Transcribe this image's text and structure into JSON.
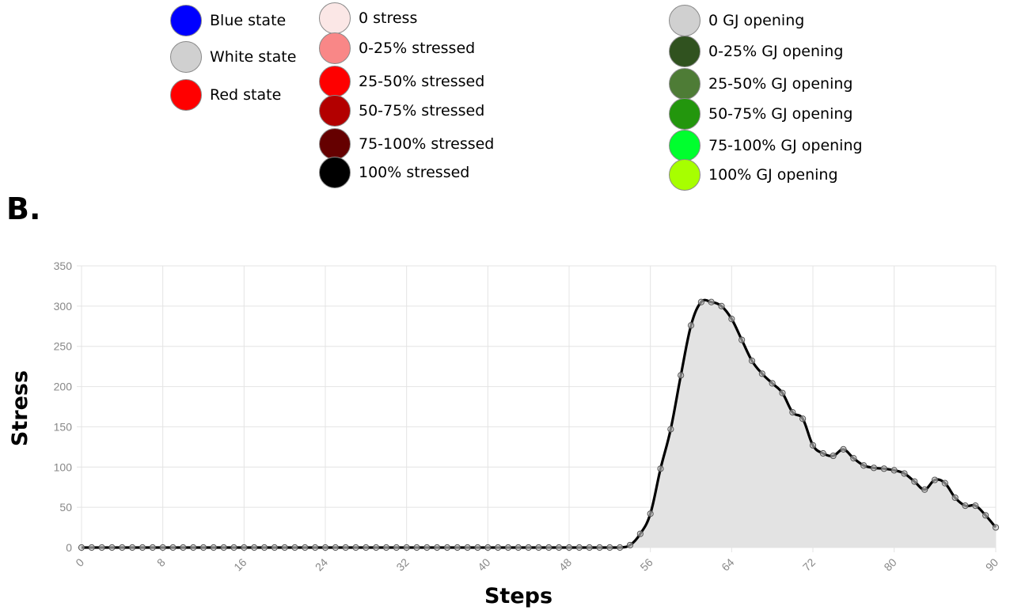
{
  "legend": {
    "states": [
      {
        "label": "Blue state",
        "color": "#0000ff"
      },
      {
        "label": "White state",
        "color": "#d0d0d0"
      },
      {
        "label": "Red state",
        "color": "#ff0000"
      }
    ],
    "stress": [
      {
        "label": "0 stress",
        "color": "#fbe7e6"
      },
      {
        "label": "0-25% stressed",
        "color": "#f98787"
      },
      {
        "label": "25-50% stressed",
        "color": "#fe0000"
      },
      {
        "label": "50-75% stressed",
        "color": "#b30000"
      },
      {
        "label": "75-100% stressed",
        "color": "#650000"
      },
      {
        "label": "100% stressed",
        "color": "#000000"
      }
    ],
    "gj": [
      {
        "label": "0  GJ opening",
        "color": "#d0d0d0"
      },
      {
        "label": "0-25% GJ opening",
        "color": "#30521f"
      },
      {
        "label": "25-50% GJ opening",
        "color": "#4e7c36"
      },
      {
        "label": "50-75% GJ opening",
        "color": "#23960d"
      },
      {
        "label": "75-100% GJ opening",
        "color": "#00ff2e"
      },
      {
        "label": "100% GJ opening",
        "color": "#a7ff00"
      }
    ]
  },
  "panel_label": "B.",
  "chart_data": {
    "type": "area",
    "xlabel": "Steps",
    "ylabel": "Stress",
    "xlim": [
      0,
      90
    ],
    "ylim": [
      0,
      350
    ],
    "x_ticks": [
      0,
      8,
      16,
      24,
      32,
      40,
      48,
      56,
      64,
      72,
      80,
      90
    ],
    "y_ticks": [
      0,
      50,
      100,
      150,
      200,
      250,
      300,
      350
    ],
    "grid": true,
    "line_color": "#000000",
    "fill_color": "#e3e3e3",
    "x": [
      0,
      1,
      2,
      3,
      4,
      5,
      6,
      7,
      8,
      9,
      10,
      11,
      12,
      13,
      14,
      15,
      16,
      17,
      18,
      19,
      20,
      21,
      22,
      23,
      24,
      25,
      26,
      27,
      28,
      29,
      30,
      31,
      32,
      33,
      34,
      35,
      36,
      37,
      38,
      39,
      40,
      41,
      42,
      43,
      44,
      45,
      46,
      47,
      48,
      49,
      50,
      51,
      52,
      53,
      54,
      55,
      56,
      57,
      58,
      59,
      60,
      61,
      62,
      63,
      64,
      65,
      66,
      67,
      68,
      69,
      70,
      71,
      72,
      73,
      74,
      75,
      76,
      77,
      78,
      79,
      80,
      81,
      82,
      83,
      84,
      85,
      86,
      87,
      88,
      89,
      90
    ],
    "values": [
      0,
      0,
      0,
      0,
      0,
      0,
      0,
      0,
      0,
      0,
      0,
      0,
      0,
      0,
      0,
      0,
      0,
      0,
      0,
      0,
      0,
      0,
      0,
      0,
      0,
      0,
      0,
      0,
      0,
      0,
      0,
      0,
      0,
      0,
      0,
      0,
      0,
      0,
      0,
      0,
      0,
      0,
      0,
      0,
      0,
      0,
      0,
      0,
      0,
      0,
      0,
      0,
      0,
      0,
      3,
      17,
      42,
      98,
      147,
      214,
      276,
      305,
      305,
      300,
      284,
      258,
      232,
      216,
      204,
      192,
      168,
      160,
      127,
      117,
      114,
      122,
      111,
      102,
      99,
      98,
      96,
      92,
      82,
      72,
      84,
      80,
      62,
      52,
      52,
      40,
      25
    ]
  }
}
